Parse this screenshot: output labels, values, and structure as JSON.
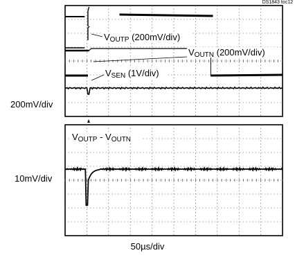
{
  "figure_id": "DS1843 toc12",
  "upper_panel_scale": "200mV/div",
  "lower_panel_scale": "10mV/div",
  "x_scale": "50µs/div",
  "chart_data": [
    {
      "type": "line",
      "panel": "upper",
      "y_scale": "200mV/div",
      "x_scale": "50µs/div",
      "grid": true,
      "divisions": {
        "x": 10,
        "y": 8
      },
      "traces": [
        {
          "label_main": "V",
          "label_sub": "OUTP",
          "label_tail": " (200mV/div)",
          "level_before_div": 7.2,
          "level_after_div": 7.35,
          "step_time_div": 1.7
        },
        {
          "label_main": "V",
          "label_sub": "OUTN",
          "label_tail": " (200mV/div)",
          "level_before_div": 6.85,
          "level_after_div": 6.85,
          "step_time_div": 1.0
        },
        {
          "label_main": "V",
          "label_sub": "SEN",
          "label_tail": " (1V/div)",
          "level_before_div": 4.2,
          "level_after_div": 4.25,
          "step_time_div": 6.3
        },
        {
          "label_main": "V",
          "label_sub": "",
          "label_tail": "",
          "level_before_div": 2.6,
          "level_after_div": 2.6,
          "step_time_div": 0.5
        }
      ]
    },
    {
      "type": "line",
      "panel": "lower",
      "y_scale": "10mV/div",
      "x_scale": "50µs/div",
      "grid": true,
      "divisions": {
        "x": 10,
        "y": 8
      },
      "traces": [
        {
          "label_parts": [
            "V",
            "OUTP",
            " - V",
            "OUTN"
          ],
          "baseline_div": 4.8,
          "spike_time_div": 0.45,
          "spike_low_div": 3.7,
          "settle_div": 0.6
        }
      ]
    }
  ]
}
